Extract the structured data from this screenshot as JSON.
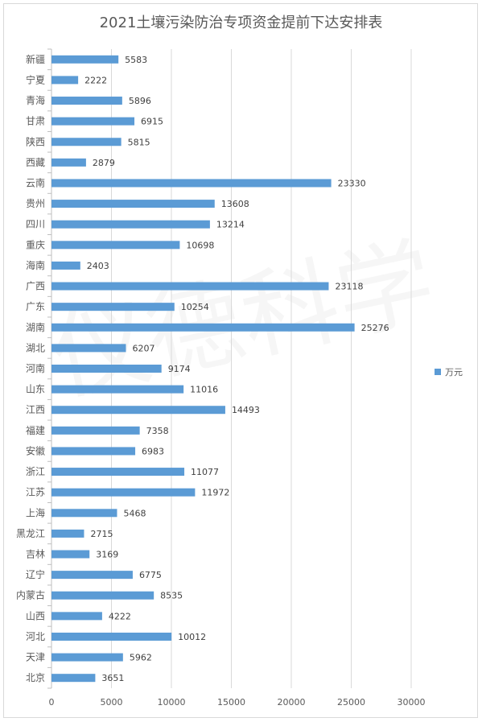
{
  "chart_data": {
    "type": "bar",
    "orientation": "horizontal",
    "title": "2021土壤污染防治专项资金提前下达安排表",
    "categories": [
      "新疆",
      "宁夏",
      "青海",
      "甘肃",
      "陕西",
      "西藏",
      "云南",
      "贵州",
      "四川",
      "重庆",
      "海南",
      "广西",
      "广东",
      "湖南",
      "湖北",
      "河南",
      "山东",
      "江西",
      "福建",
      "安徽",
      "浙江",
      "江苏",
      "上海",
      "黑龙江",
      "吉林",
      "辽宁",
      "内蒙古",
      "山西",
      "河北",
      "天津",
      "北京"
    ],
    "series": [
      {
        "name": "万元",
        "values": [
          5583,
          2222,
          5896,
          6915,
          5815,
          2879,
          23330,
          13608,
          13214,
          10698,
          2403,
          23118,
          10254,
          25276,
          6207,
          9174,
          11016,
          14493,
          7358,
          6983,
          11077,
          11972,
          5468,
          2715,
          3169,
          6775,
          8535,
          4222,
          10012,
          5962,
          3651
        ]
      }
    ],
    "xlim": [
      0,
      30000
    ],
    "xticks": [
      "0",
      "5000",
      "10000",
      "15000",
      "20000",
      "25000",
      "30000"
    ],
    "grid": true,
    "legend_position": "right",
    "bar_color": "#5b9bd5",
    "watermark": "仪德科学"
  }
}
